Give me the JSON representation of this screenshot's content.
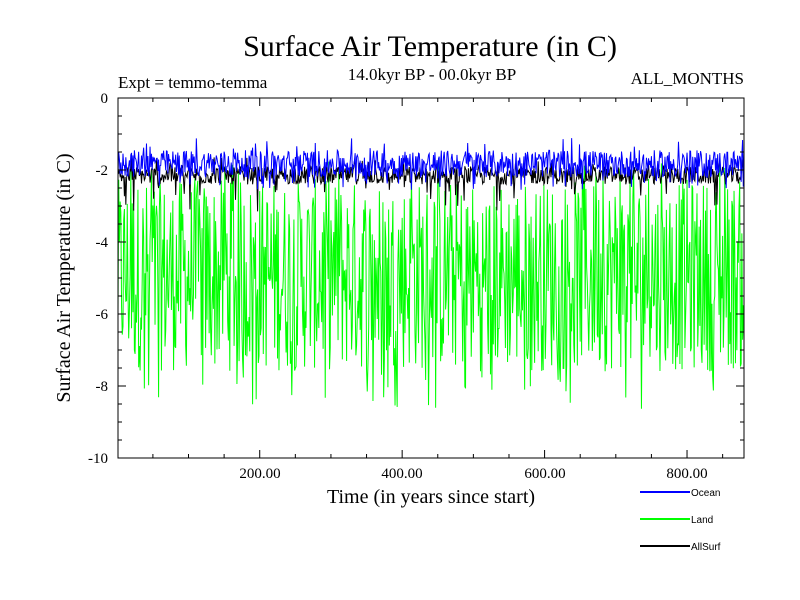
{
  "chart_data": {
    "type": "line",
    "title": "Surface Air Temperature (in C)",
    "subtitle_left": "Expt = temmo-temma",
    "subtitle_center": "14.0kyr BP - 00.0kyr BP",
    "subtitle_right": "ALL_MONTHS",
    "xlabel": "Time (in years since start)",
    "ylabel": "Surface Air Temperature (in C)",
    "xlim": [
      1,
      880
    ],
    "ylim": [
      -10,
      0
    ],
    "x_ticks": [
      200,
      400,
      600,
      800
    ],
    "x_tick_labels": [
      "200.00",
      "400.00",
      "600.00",
      "800.00"
    ],
    "y_ticks": [
      0,
      -2,
      -4,
      -6,
      -8,
      -10
    ],
    "y_tick_labels": [
      "0",
      "-2",
      "-4",
      "-6",
      "-8",
      "-10"
    ],
    "series": [
      {
        "name": "Land",
        "color": "#00ff00",
        "mean": -5.0,
        "band_top": -2.25,
        "band_bottom": -7.6,
        "min_spike": -8.65,
        "max_spike": -1.75
      },
      {
        "name": "AllSurf",
        "color": "#000000",
        "mean": -2.1,
        "band_top": -1.9,
        "band_bottom": -2.4,
        "min_spike": -3.2,
        "max_spike": -1.6
      },
      {
        "name": "Ocean",
        "color": "#0000ff",
        "mean": -1.85,
        "band_top": -1.45,
        "band_bottom": -2.2,
        "min_spike": -2.55,
        "max_spike": -1.1
      }
    ],
    "legend": [
      {
        "name": "Ocean",
        "color": "#0000ff"
      },
      {
        "name": "Land",
        "color": "#00ff00"
      },
      {
        "name": "AllSurf",
        "color": "#000000"
      }
    ],
    "legend_position": "bottom-right"
  }
}
